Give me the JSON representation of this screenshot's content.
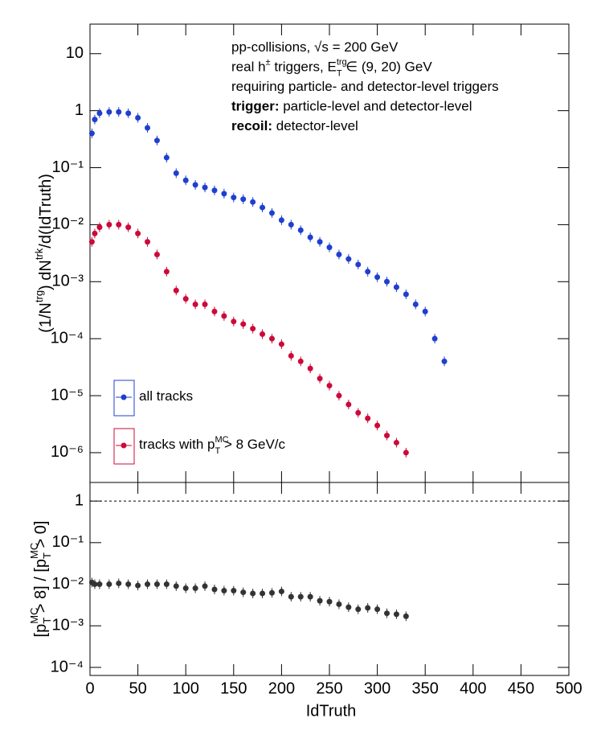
{
  "chart_data": [
    {
      "type": "scatter",
      "log_y": true,
      "ylabel": [
        {
          "t": "(1/N"
        },
        {
          "t": "trg",
          "s": "sup"
        },
        {
          "t": ") dN"
        },
        {
          "t": "trk",
          "s": "sup"
        },
        {
          "t": "/d(IdTruth)"
        }
      ],
      "ylim": [
        3e-07,
        33
      ],
      "yticks": [
        {
          "value": 1e-06,
          "label": "10⁻⁶"
        },
        {
          "value": 1e-05,
          "label": "10⁻⁵"
        },
        {
          "value": 0.0001,
          "label": "10⁻⁴"
        },
        {
          "value": 0.001,
          "label": "10⁻³"
        },
        {
          "value": 0.01,
          "label": "10⁻²"
        },
        {
          "value": 0.1,
          "label": "10⁻¹"
        },
        1,
        10
      ],
      "annotations": [
        [
          {
            "t": "pp-collisions, "
          },
          {
            "t": "√s"
          },
          {
            "t": " = 200 GeV"
          }
        ],
        [
          {
            "t": "real h"
          },
          {
            "t": "±",
            "s": "sup"
          },
          {
            "t": " triggers, E"
          },
          {
            "t": "trg",
            "s": "sup"
          },
          {
            "t": "T",
            "s": "sub"
          },
          {
            "t": " ∈ (9, 20) GeV"
          }
        ],
        [
          {
            "t": "requiring particle- and detector-level triggers"
          }
        ],
        [
          {
            "t": "trigger:",
            "s": "b"
          },
          {
            "t": " particle-level and detector-level"
          }
        ],
        [
          {
            "t": "recoil:",
            "s": "b"
          },
          {
            "t": " detector-level"
          }
        ]
      ],
      "legend": "bottom-left",
      "series": [
        {
          "name": [
            {
              "t": "all tracks"
            }
          ],
          "color": "#1f3fcf",
          "x": [
            2,
            5,
            10,
            20,
            30,
            40,
            50,
            60,
            70,
            80,
            90,
            100,
            110,
            120,
            130,
            140,
            150,
            160,
            170,
            180,
            190,
            200,
            210,
            220,
            230,
            240,
            250,
            260,
            270,
            280,
            290,
            300,
            310,
            320,
            330,
            340,
            350,
            360,
            370
          ],
          "values": [
            0.4,
            0.7,
            0.9,
            0.95,
            0.95,
            0.9,
            0.75,
            0.5,
            0.3,
            0.15,
            0.08,
            0.06,
            0.05,
            0.045,
            0.04,
            0.035,
            0.03,
            0.028,
            0.025,
            0.02,
            0.016,
            0.012,
            0.01,
            0.008,
            0.006,
            0.005,
            0.004,
            0.003,
            0.0025,
            0.002,
            0.0015,
            0.0012,
            0.001,
            0.0008,
            0.0006,
            0.0004,
            0.0003,
            0.0001,
            4e-05
          ]
        },
        {
          "name": [
            {
              "t": "tracks with p"
            },
            {
              "t": "MC",
              "s": "sup"
            },
            {
              "t": "T",
              "s": "sub"
            },
            {
              "t": " > 8 GeV/c"
            }
          ],
          "color": "#cc0a3a",
          "x": [
            2,
            5,
            10,
            20,
            30,
            40,
            50,
            60,
            70,
            80,
            90,
            100,
            110,
            120,
            130,
            140,
            150,
            160,
            170,
            180,
            190,
            200,
            210,
            220,
            230,
            240,
            250,
            260,
            270,
            280,
            290,
            300,
            310,
            320,
            330
          ],
          "values": [
            0.005,
            0.007,
            0.009,
            0.01,
            0.01,
            0.009,
            0.007,
            0.005,
            0.003,
            0.0015,
            0.0007,
            0.0005,
            0.0004,
            0.0004,
            0.0003,
            0.00025,
            0.0002,
            0.00018,
            0.00015,
            0.00012,
            0.0001,
            8e-05,
            5e-05,
            4e-05,
            3e-05,
            2e-05,
            1.5e-05,
            1e-05,
            7e-06,
            5e-06,
            4e-06,
            3e-06,
            2e-06,
            1.5e-06,
            1e-06
          ]
        }
      ]
    },
    {
      "type": "scatter",
      "log_y": true,
      "xlabel": "IdTruth",
      "xlim": [
        0,
        500
      ],
      "xticks": [
        0,
        50,
        100,
        150,
        200,
        250,
        300,
        350,
        400,
        450,
        500
      ],
      "ylabel": [
        {
          "t": "[p"
        },
        {
          "t": "MC",
          "s": "sup"
        },
        {
          "t": "T",
          "s": "sub"
        },
        {
          "t": " > 8] / [p"
        },
        {
          "t": "MC",
          "s": "sup"
        },
        {
          "t": "T",
          "s": "sub"
        },
        {
          "t": " > 0]"
        }
      ],
      "ylim": [
        6.4e-05,
        2.8
      ],
      "yticks": [
        {
          "value": 0.0001,
          "label": "10⁻⁴"
        },
        {
          "value": 0.001,
          "label": "10⁻³"
        },
        {
          "value": 0.01,
          "label": "10⁻²"
        },
        {
          "value": 0.1,
          "label": "10⁻¹"
        },
        1
      ],
      "reference_line": 1,
      "series": [
        {
          "color": "#333333",
          "x": [
            2,
            5,
            10,
            20,
            30,
            40,
            50,
            60,
            70,
            80,
            90,
            100,
            110,
            120,
            130,
            140,
            150,
            160,
            170,
            180,
            190,
            200,
            210,
            220,
            230,
            240,
            250,
            260,
            270,
            280,
            290,
            300,
            310,
            320,
            330
          ],
          "values": [
            0.011,
            0.01,
            0.01,
            0.01,
            0.0105,
            0.01,
            0.0093,
            0.01,
            0.01,
            0.01,
            0.009,
            0.008,
            0.008,
            0.009,
            0.0075,
            0.007,
            0.007,
            0.0064,
            0.006,
            0.006,
            0.0062,
            0.0067,
            0.005,
            0.005,
            0.005,
            0.004,
            0.0038,
            0.0033,
            0.0028,
            0.0025,
            0.0027,
            0.0025,
            0.002,
            0.0019,
            0.0017
          ]
        }
      ]
    }
  ]
}
